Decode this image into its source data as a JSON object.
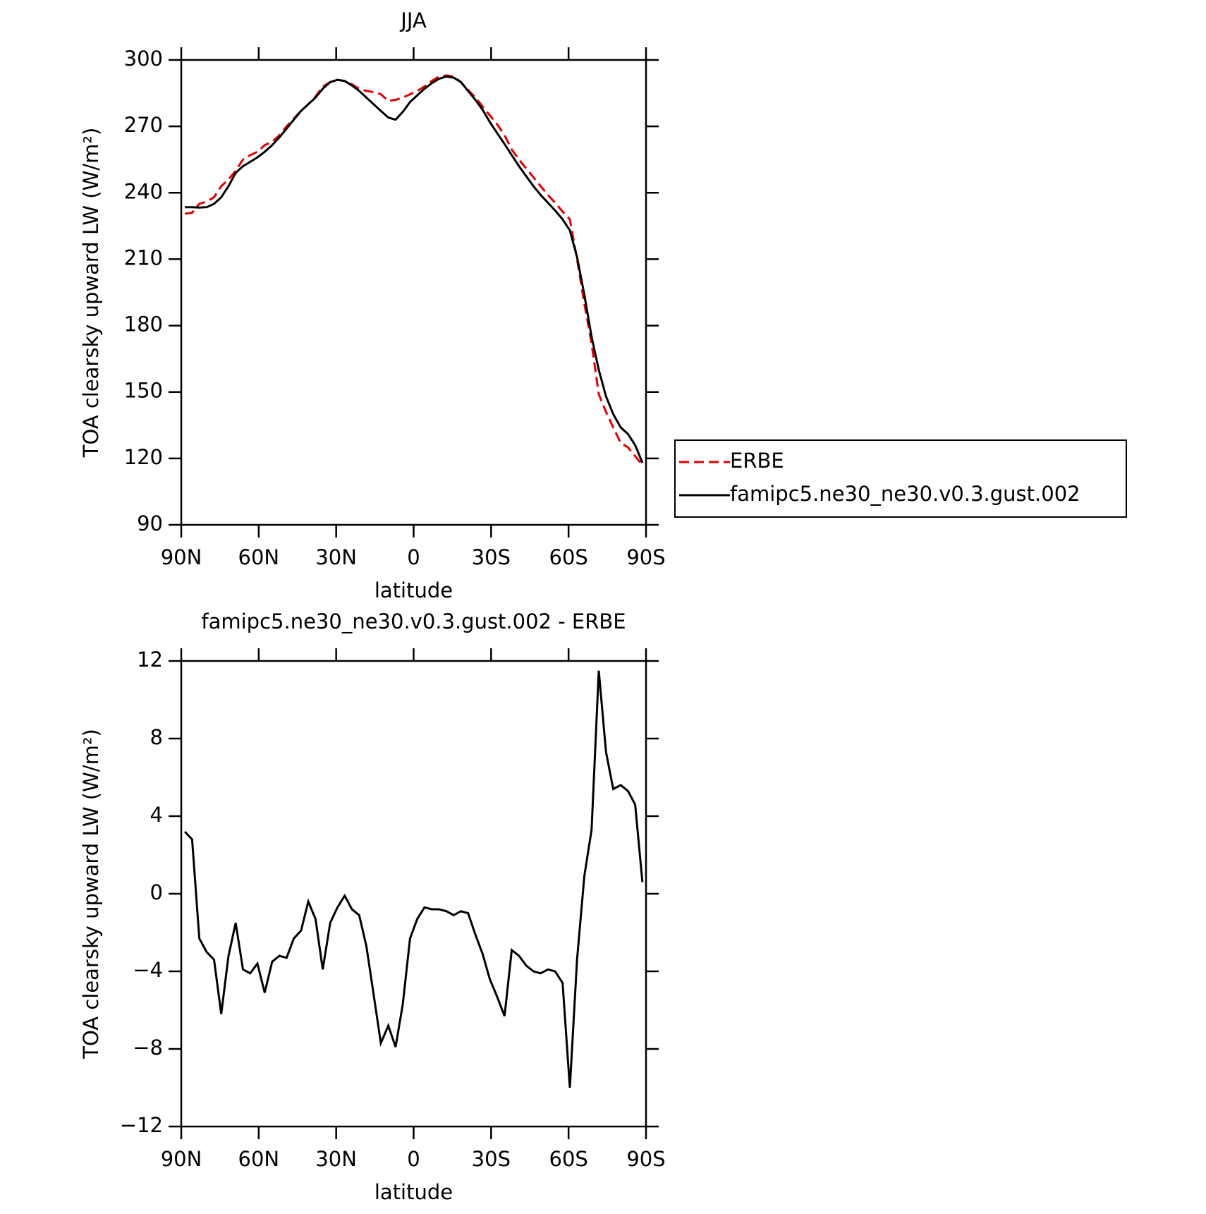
{
  "chart_data": [
    {
      "type": "line",
      "title": "JJA",
      "x_label": "latitude",
      "y_label": "TOA clearsky upward LW (W/m²)",
      "x": [
        88.6,
        85.8,
        83.0,
        80.2,
        77.3,
        74.5,
        71.7,
        68.9,
        66.1,
        63.3,
        60.5,
        57.7,
        54.8,
        52.0,
        49.2,
        46.4,
        43.6,
        40.8,
        38.0,
        35.2,
        32.3,
        29.5,
        26.7,
        23.9,
        21.1,
        18.3,
        15.5,
        12.7,
        9.8,
        7.0,
        4.2,
        1.4,
        -1.4,
        -4.2,
        -7.0,
        -9.8,
        -12.7,
        -15.5,
        -18.3,
        -21.1,
        -23.9,
        -26.7,
        -29.5,
        -32.3,
        -35.2,
        -38.0,
        -40.8,
        -43.6,
        -46.4,
        -49.2,
        -52.0,
        -54.8,
        -57.7,
        -60.5,
        -63.3,
        -66.1,
        -68.9,
        -71.7,
        -74.5,
        -77.3,
        -80.2,
        -83.0,
        -85.8,
        -88.6
      ],
      "series": [
        {
          "name": "ERBE",
          "color": "#e00000",
          "style": "dashed",
          "values": [
            230.5,
            231,
            235,
            236,
            238,
            243,
            246,
            250,
            255,
            257,
            258.5,
            261.5,
            263,
            266,
            270,
            273.5,
            277,
            280,
            283.5,
            288,
            290,
            291,
            290.5,
            289,
            287,
            286,
            285.5,
            284.5,
            281.5,
            282,
            283,
            284.5,
            286,
            288,
            290.5,
            292.5,
            293,
            292.5,
            290,
            286.5,
            283,
            279,
            275,
            271,
            266,
            259.5,
            255,
            251,
            247,
            243,
            239,
            235.5,
            231.5,
            228,
            210,
            190,
            172,
            149,
            141,
            134,
            127,
            125,
            121,
            117
          ]
        },
        {
          "name": "famipc5.ne30_ne30.v0.3.gust.002",
          "color": "#000000",
          "style": "solid",
          "values": [
            233.5,
            233.5,
            233.3,
            233.5,
            235,
            238,
            243,
            249,
            252,
            254,
            256,
            258.5,
            261.5,
            265,
            269,
            273,
            277,
            280,
            283,
            287,
            290,
            291,
            290.5,
            288.5,
            286,
            283,
            280,
            277,
            274,
            273,
            276.5,
            281,
            284,
            287,
            289.5,
            291.5,
            292.5,
            292,
            290,
            286,
            282,
            277.5,
            272,
            267,
            262,
            257,
            252,
            247.5,
            243,
            239,
            235.5,
            232,
            228,
            223,
            211,
            194,
            175,
            160,
            148,
            140,
            134,
            131,
            126,
            118
          ]
        }
      ],
      "xlim": [
        90,
        -90
      ],
      "xticks": [
        {
          "value": 90,
          "label": "90N"
        },
        {
          "value": 60,
          "label": "60N"
        },
        {
          "value": 30,
          "label": "30N"
        },
        0,
        {
          "value": -30,
          "label": "30S"
        },
        {
          "value": -60,
          "label": "60S"
        },
        {
          "value": -90,
          "label": "90S"
        }
      ],
      "ylim": [
        90,
        300
      ],
      "yticks": [
        90,
        120,
        150,
        180,
        210,
        240,
        270,
        300
      ],
      "legend": "right"
    },
    {
      "type": "line",
      "title": "famipc5.ne30_ne30.v0.3.gust.002 - ERBE",
      "x_label": "latitude",
      "y_label": "TOA clearsky upward LW (W/m²)",
      "x": [
        88.6,
        85.8,
        83.0,
        80.2,
        77.3,
        74.5,
        71.7,
        68.9,
        66.1,
        63.3,
        60.5,
        57.7,
        54.8,
        52.0,
        49.2,
        46.4,
        43.6,
        40.8,
        38.0,
        35.2,
        32.3,
        29.5,
        26.7,
        23.9,
        21.1,
        18.3,
        15.5,
        12.7,
        9.8,
        7.0,
        4.2,
        1.4,
        -1.4,
        -4.2,
        -7.0,
        -9.8,
        -12.7,
        -15.5,
        -18.3,
        -21.1,
        -23.9,
        -26.7,
        -29.5,
        -32.3,
        -35.2,
        -38.0,
        -40.8,
        -43.6,
        -46.4,
        -49.2,
        -52.0,
        -54.8,
        -57.7,
        -60.5,
        -63.3,
        -66.1,
        -68.9,
        -71.7,
        -74.5,
        -77.3,
        -80.2,
        -83.0,
        -85.8,
        -88.6
      ],
      "color": "#000000",
      "values": [
        3.2,
        2.8,
        -2.3,
        -3.0,
        -3.4,
        -6.2,
        -3.2,
        -1.5,
        -3.9,
        -4.1,
        -3.6,
        -5.1,
        -3.5,
        -3.2,
        -3.3,
        -2.3,
        -1.9,
        -0.4,
        -1.3,
        -3.9,
        -1.5,
        -0.7,
        -0.1,
        -0.8,
        -1.1,
        -2.7,
        -5.2,
        -7.7,
        -6.8,
        -7.9,
        -5.7,
        -2.3,
        -1.3,
        -0.7,
        -0.8,
        -0.8,
        -0.9,
        -1.1,
        -0.9,
        -1.0,
        -2.1,
        -3.1,
        -4.4,
        -5.3,
        -6.3,
        -2.9,
        -3.2,
        -3.7,
        -4.0,
        -4.1,
        -3.9,
        -4.0,
        -4.6,
        -10.0,
        -3.4,
        0.9,
        3.3,
        11.5,
        7.3,
        5.4,
        5.6,
        5.3,
        4.6,
        0.6
      ],
      "xlim": [
        90,
        -90
      ],
      "xticks": [
        {
          "value": 90,
          "label": "90N"
        },
        {
          "value": 60,
          "label": "60N"
        },
        {
          "value": 30,
          "label": "30N"
        },
        0,
        {
          "value": -30,
          "label": "30S"
        },
        {
          "value": -60,
          "label": "60S"
        },
        {
          "value": -90,
          "label": "90S"
        }
      ],
      "ylim": [
        -12,
        12
      ],
      "yticks": [
        {
          "value": -12,
          "label": "−12"
        },
        {
          "value": -8,
          "label": "−8"
        },
        {
          "value": -4,
          "label": "−4"
        },
        0,
        4,
        8,
        12
      ]
    }
  ]
}
